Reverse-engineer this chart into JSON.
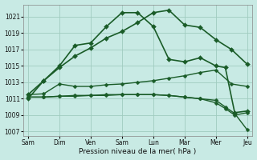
{
  "background_color": "#c8eae4",
  "grid_color": "#a0ccbf",
  "line_color": "#1a5c28",
  "title": "Pression niveau de la mer( hPa )",
  "ylim": [
    1006.5,
    1022.5
  ],
  "yticks": [
    1007,
    1009,
    1011,
    1013,
    1015,
    1017,
    1019,
    1021
  ],
  "x_labels": [
    "Sam",
    "Dim",
    "Ven",
    "Sam",
    "Lun",
    "Mar",
    "Mer",
    "Jeu"
  ],
  "line1_x": [
    0,
    0.5,
    1,
    1.5,
    2,
    2.5,
    3,
    3.5,
    4,
    4.5,
    5,
    5.5,
    6,
    6.5,
    7
  ],
  "line1_y": [
    1011.5,
    1013.2,
    1014.8,
    1016.2,
    1017.2,
    1018.4,
    1019.2,
    1020.3,
    1021.5,
    1021.8,
    1020.0,
    1019.7,
    1018.2,
    1017.0,
    1015.2
  ],
  "line2_x": [
    0,
    0.5,
    1,
    1.5,
    2,
    2.5,
    3,
    3.5,
    4,
    4.5,
    5,
    5.5,
    6,
    6.3,
    6.6,
    7
  ],
  "line2_y": [
    1011.0,
    1013.2,
    1015.0,
    1017.5,
    1017.8,
    1019.8,
    1021.5,
    1021.5,
    1019.8,
    1015.8,
    1015.5,
    1016.0,
    1015.0,
    1014.8,
    1009.3,
    1009.5
  ],
  "line3_x": [
    0,
    0.5,
    1,
    1.5,
    2,
    2.5,
    3,
    3.5,
    4,
    4.5,
    5,
    5.5,
    6,
    6.5,
    7
  ],
  "line3_y": [
    1011.5,
    1011.6,
    1012.8,
    1012.5,
    1012.5,
    1012.7,
    1012.8,
    1013.0,
    1013.2,
    1013.5,
    1013.8,
    1014.2,
    1014.5,
    1012.8,
    1012.5
  ],
  "line4_x": [
    0,
    0.5,
    1,
    1.5,
    2,
    2.5,
    3,
    3.5,
    4,
    4.5,
    5,
    5.5,
    6,
    6.3,
    6.6,
    7
  ],
  "line4_y": [
    1011.2,
    1011.2,
    1011.3,
    1011.3,
    1011.4,
    1011.4,
    1011.5,
    1011.5,
    1011.5,
    1011.4,
    1011.2,
    1011.0,
    1010.8,
    1010.0,
    1009.2,
    1007.2
  ],
  "line5_x": [
    0,
    0.5,
    1,
    1.5,
    2,
    2.5,
    3,
    3.5,
    4,
    4.5,
    5,
    5.5,
    6,
    6.3,
    6.6,
    7
  ],
  "line5_y": [
    1011.2,
    1011.2,
    1011.3,
    1011.4,
    1011.4,
    1011.5,
    1011.5,
    1011.5,
    1011.5,
    1011.4,
    1011.2,
    1011.0,
    1010.5,
    1009.8,
    1009.0,
    1009.3
  ]
}
